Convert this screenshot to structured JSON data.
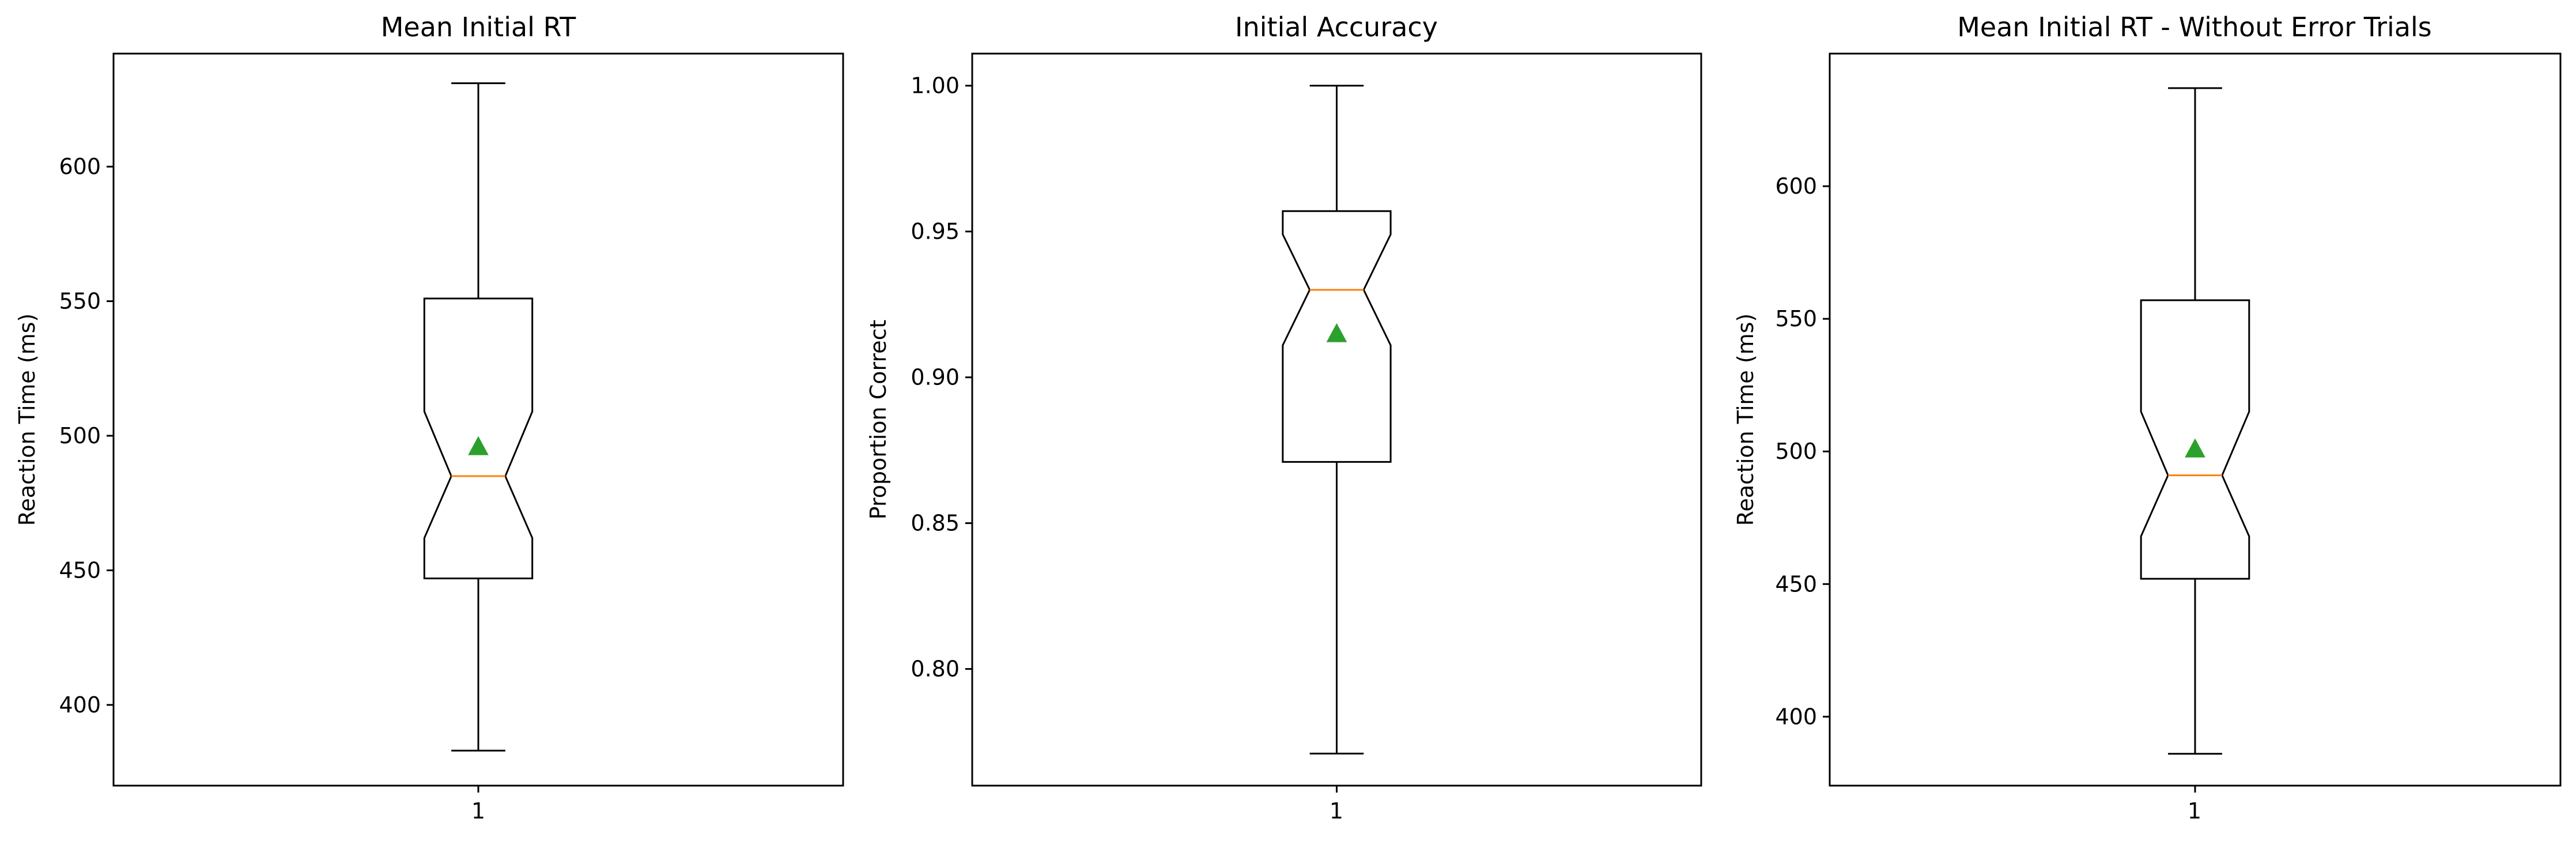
{
  "chart_data": [
    {
      "type": "boxplot",
      "title": "Mean Initial RT",
      "xlabel": "",
      "ylabel": "Reaction Time (ms)",
      "categories": [
        "1"
      ],
      "ylim": [
        370,
        642
      ],
      "yticks": [
        400,
        450,
        500,
        550,
        600
      ],
      "ytick_labels": [
        "400",
        "450",
        "500",
        "550",
        "600"
      ],
      "box": {
        "whisker_low": 383,
        "q1": 447,
        "median": 485,
        "q3": 551,
        "whisker_high": 631,
        "notch_low": 462,
        "notch_high": 509,
        "mean": 496
      }
    },
    {
      "type": "boxplot",
      "title": "Initial Accuracy",
      "xlabel": "",
      "ylabel": "Proportion Correct",
      "categories": [
        "1"
      ],
      "ylim": [
        0.76,
        1.011
      ],
      "yticks": [
        0.8,
        0.85,
        0.9,
        0.95,
        1.0
      ],
      "ytick_labels": [
        "0.80",
        "0.85",
        "0.90",
        "0.95",
        "1.00"
      ],
      "box": {
        "whisker_low": 0.771,
        "q1": 0.871,
        "median": 0.93,
        "q3": 0.957,
        "whisker_high": 1.0,
        "notch_low": 0.911,
        "notch_high": 0.949,
        "mean": 0.915
      }
    },
    {
      "type": "boxplot",
      "title": "Mean Initial RT - Without Error Trials",
      "xlabel": "",
      "ylabel": "Reaction Time (ms)",
      "categories": [
        "1"
      ],
      "ylim": [
        374,
        650
      ],
      "yticks": [
        400,
        450,
        500,
        550,
        600
      ],
      "ytick_labels": [
        "400",
        "450",
        "500",
        "550",
        "600"
      ],
      "box": {
        "whisker_low": 386,
        "q1": 452,
        "median": 491,
        "q3": 557,
        "whisker_high": 637,
        "notch_low": 468,
        "notch_high": 515,
        "mean": 501
      }
    }
  ],
  "colors": {
    "box": "#000000",
    "median": "#ff7f0e",
    "mean_marker": "#2ca02c"
  }
}
